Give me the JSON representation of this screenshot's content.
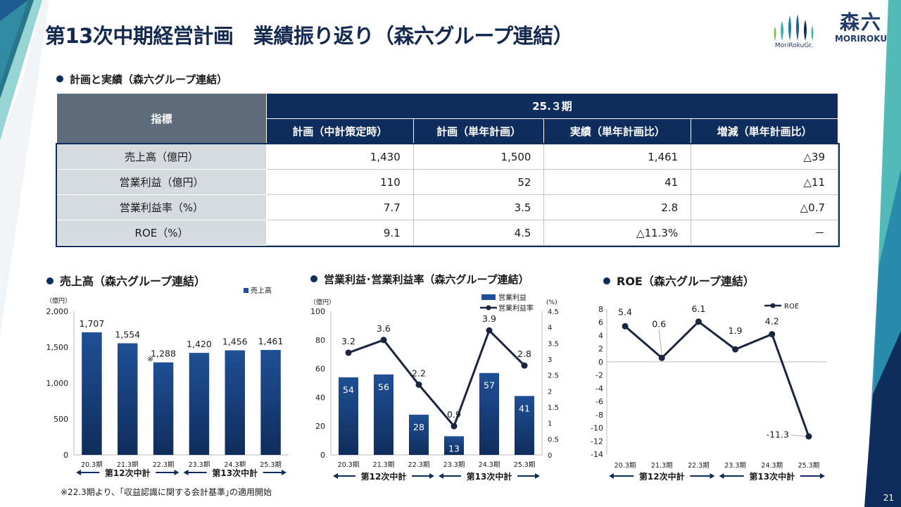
{
  "title": "第13次中期経営計画　業績振り返り（森六グループ連結）",
  "logos": {
    "group_text": "MoriRokuGr.",
    "brand_kanji": "森六",
    "brand_roman": "MORIROKU"
  },
  "page_number": "21",
  "table": {
    "section_title": "計画と実績（森六グループ連結）",
    "indicator_header": "指標",
    "period_header": "25.３期",
    "columns": [
      "計画（中計策定時）",
      "計画（単年計画）",
      "実績（単年計画比）",
      "増減（単年計画比）"
    ],
    "rows": [
      {
        "label": "売上高（億円）",
        "values": [
          "1,430",
          "1,500",
          "1,461",
          "△39"
        ]
      },
      {
        "label": "営業利益（億円）",
        "values": [
          "110",
          "52",
          "41",
          "△11"
        ]
      },
      {
        "label": "営業利益率（%）",
        "values": [
          "7.7",
          "3.5",
          "2.8",
          "△0.7"
        ]
      },
      {
        "label": "ROE（%）",
        "values": [
          "9.1",
          "4.5",
          "△11.3%",
          "－"
        ]
      }
    ]
  },
  "footnote": "※22.3期より、｢収益認識に関する会計基準｣の適用開始",
  "colors": {
    "navy": "#0f2d5c",
    "bar_top": "#1f4f96",
    "bar_bottom": "#0f2d5c",
    "label_bg": "#d6dbe1",
    "header_gray": "#5e6b7a",
    "teal": "#3fb3b0"
  },
  "chart_data": [
    {
      "type": "bar",
      "section_title": "売上高（森六グループ連結）",
      "categories": [
        "20.3期",
        "21.3期",
        "22.3期",
        "23.3期",
        "24.3期",
        "25.3期"
      ],
      "series": [
        {
          "name": "売上高",
          "values": [
            1707,
            1554,
            1288,
            1420,
            1456,
            1461
          ]
        }
      ],
      "data_labels": [
        "1,707",
        "1,554",
        "1,288",
        "1,420",
        "1,456",
        "1,461"
      ],
      "annotation": "※",
      "yunit": "（億円）",
      "ylim": [
        0,
        2000
      ],
      "yticks": [
        0,
        500,
        1000,
        1500,
        2000
      ],
      "ytick_labels": [
        "0",
        "500",
        "1,000",
        "1,500",
        "2,000"
      ],
      "legend": "top-right",
      "periods": [
        {
          "label": "第12次中計",
          "from": 0,
          "to": 2
        },
        {
          "label": "第13次中計",
          "from": 3,
          "to": 5
        }
      ]
    },
    {
      "type": "bar+line",
      "section_title": "営業利益･営業利益率（森六グループ連結）",
      "categories": [
        "20.3期",
        "21.3期",
        "22.3期",
        "23.3期",
        "24.3期",
        "25.3期"
      ],
      "series": [
        {
          "name": "営業利益",
          "type": "bar",
          "axis": "left",
          "values": [
            54,
            56,
            28,
            13,
            57,
            41
          ]
        },
        {
          "name": "営業利益率",
          "type": "line",
          "axis": "right",
          "values": [
            3.2,
            3.6,
            2.2,
            0.9,
            3.9,
            2.8
          ]
        }
      ],
      "yunit_left": "（億円）",
      "yunit_right": "(%)",
      "ylim_left": [
        0,
        100
      ],
      "yticks_left": [
        0,
        20,
        40,
        60,
        80,
        100
      ],
      "ylim_right": [
        0,
        4.5
      ],
      "yticks_right": [
        0,
        0.5,
        1,
        1.5,
        2,
        2.5,
        3,
        3.5,
        4,
        4.5
      ],
      "legend": "top-right",
      "periods": [
        {
          "label": "第12次中計",
          "from": 0,
          "to": 2
        },
        {
          "label": "第13次中計",
          "from": 3,
          "to": 5
        }
      ]
    },
    {
      "type": "line",
      "section_title": "ROE（森六グループ連結）",
      "categories": [
        "20.3期",
        "21.3期",
        "22.3期",
        "23.3期",
        "24.3期",
        "25.3期"
      ],
      "series": [
        {
          "name": "ROE",
          "values": [
            5.4,
            0.6,
            6.1,
            1.9,
            4.2,
            -11.3
          ]
        }
      ],
      "ylim": [
        -14,
        8
      ],
      "yticks": [
        -14,
        -12,
        -10,
        -8,
        -6,
        -4,
        -2,
        0,
        2,
        4,
        6,
        8
      ],
      "legend": "top-right",
      "periods": [
        {
          "label": "第12次中計",
          "from": 0,
          "to": 2
        },
        {
          "label": "第13次中計",
          "from": 3,
          "to": 5
        }
      ]
    }
  ]
}
